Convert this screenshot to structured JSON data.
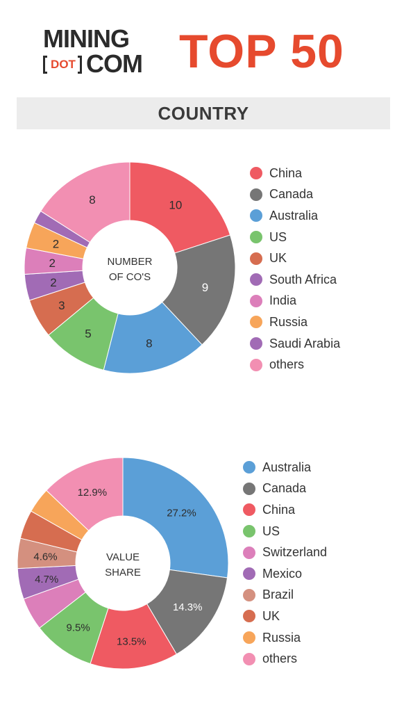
{
  "header": {
    "logo_line1": "MINING",
    "logo_dot": "DOT",
    "logo_line2": "COM",
    "title": "TOP 50"
  },
  "section_title": "COUNTRY",
  "colors": {
    "China": "#ef5a62",
    "Canada": "#767676",
    "Australia": "#5b9fd7",
    "US": "#79c46d",
    "UK": "#d66d50",
    "South Africa": "#a16bb5",
    "India": "#dc7fba",
    "Russia": "#f7a55a",
    "Saudi Arabia": "#a16bb5",
    "others": "#f28fb2",
    "Switzerland": "#dc7fba",
    "Mexico": "#a16bb5",
    "Brazil": "#d4907f"
  },
  "chart_data": [
    {
      "type": "pie",
      "center_label": [
        "NUMBER",
        "OF CO'S"
      ],
      "categories": [
        "China",
        "Canada",
        "Australia",
        "US",
        "UK",
        "South Africa",
        "India",
        "Russia",
        "Saudi Arabia",
        "others"
      ],
      "values": [
        10,
        9,
        8,
        5,
        3,
        2,
        2,
        2,
        1,
        8
      ],
      "data_labels": [
        "10",
        "9",
        "8",
        "5",
        "3",
        "2",
        "2",
        "2",
        "",
        "8"
      ],
      "label_colors": [
        "#2d2d2d",
        "#ffffff",
        "#2d2d2d",
        "#2d2d2d",
        "#2d2d2d",
        "#2d2d2d",
        "#2d2d2d",
        "#2d2d2d",
        "#2d2d2d",
        "#2d2d2d"
      ],
      "legend": [
        "China",
        "Canada",
        "Australia",
        "US",
        "UK",
        "South Africa",
        "India",
        "Russia",
        "Saudi Arabia",
        "others"
      ],
      "legend_placement": "right"
    },
    {
      "type": "pie",
      "center_label": [
        "VALUE",
        "SHARE"
      ],
      "categories": [
        "Australia",
        "Canada",
        "China",
        "US",
        "Switzerland",
        "Mexico",
        "Brazil",
        "UK",
        "Russia",
        "others"
      ],
      "values": [
        27.2,
        14.3,
        13.5,
        9.5,
        5.0,
        4.7,
        4.6,
        4.4,
        3.9,
        12.9
      ],
      "data_labels": [
        "27.2%",
        "14.3%",
        "13.5%",
        "9.5%",
        "",
        "4.7%",
        "4.6%",
        "",
        "",
        "12.9%"
      ],
      "label_colors": [
        "#2d2d2d",
        "#ffffff",
        "#2d2d2d",
        "#2d2d2d",
        "#2d2d2d",
        "#2d2d2d",
        "#2d2d2d",
        "#2d2d2d",
        "#2d2d2d",
        "#2d2d2d"
      ],
      "legend": [
        "Australia",
        "Canada",
        "China",
        "US",
        "Switzerland",
        "Mexico",
        "Brazil",
        "UK",
        "Russia",
        "others"
      ],
      "legend_placement": "right"
    }
  ]
}
